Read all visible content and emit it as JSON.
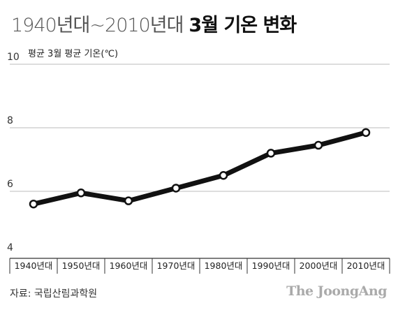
{
  "header": {
    "title_light": "1940년대~2010년대",
    "title_bold": "3월 기온 변화"
  },
  "footer": {
    "source": "자료: 국립산림과학원",
    "brand": "The JoongAng"
  },
  "chart_data": {
    "type": "line",
    "title": "1940년대~2010년대 3월 기온 변화",
    "ylabel": "평균 3월 평균 기온(℃)",
    "xlabel": "",
    "categories": [
      "1940년대",
      "1950년대",
      "1960년대",
      "1970년대",
      "1980년대",
      "1990년대",
      "2000년대",
      "2010년대"
    ],
    "series": [
      {
        "values": [
          5.6,
          5.95,
          5.7,
          6.1,
          6.5,
          7.2,
          7.45,
          7.85
        ]
      }
    ],
    "ylim": [
      4,
      10
    ],
    "yticks": [
      4,
      6,
      8,
      10
    ],
    "grid": true,
    "colors": {
      "line": "#111111",
      "grid": "#bbbbbb",
      "marker_fill": "#ffffff",
      "axis": "#333333"
    }
  }
}
